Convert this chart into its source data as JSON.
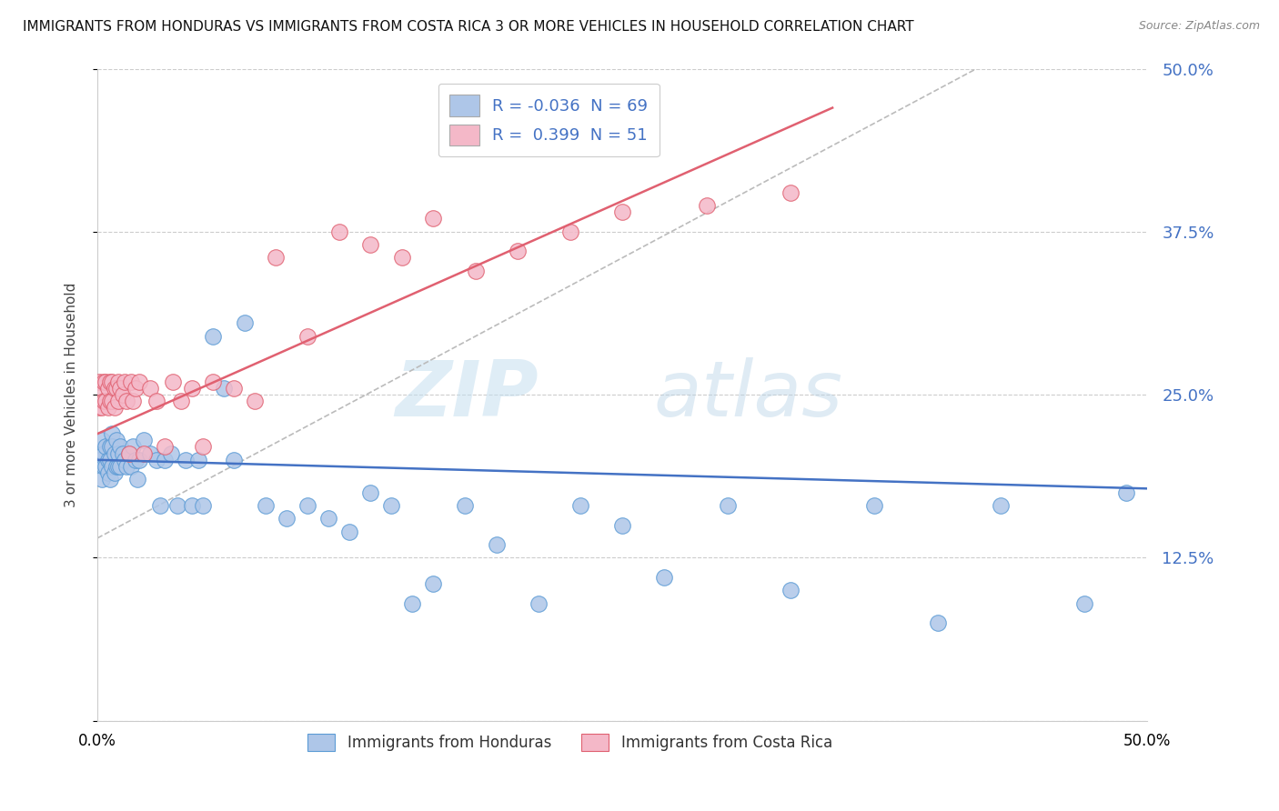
{
  "title": "IMMIGRANTS FROM HONDURAS VS IMMIGRANTS FROM COSTA RICA 3 OR MORE VEHICLES IN HOUSEHOLD CORRELATION CHART",
  "source": "Source: ZipAtlas.com",
  "ylabel": "3 or more Vehicles in Household",
  "y_ticks": [
    0.0,
    0.125,
    0.25,
    0.375,
    0.5
  ],
  "y_tick_labels": [
    "",
    "12.5%",
    "25.0%",
    "37.5%",
    "50.0%"
  ],
  "legend_honduras_label": "R = -0.036  N = 69",
  "legend_costarica_label": "R =  0.399  N = 51",
  "honduras_color": "#aec6e8",
  "honduras_edge": "#5b9bd5",
  "costarica_color": "#f4b8c8",
  "costarica_edge": "#e06070",
  "trend_blue": "#4472c4",
  "trend_pink": "#e06070",
  "trend_gray": "#bbbbbb",
  "grid_color": "#cccccc",
  "background_color": "#ffffff",
  "xlim": [
    0.0,
    0.5
  ],
  "ylim": [
    0.0,
    0.5
  ],
  "honduras_x": [
    0.001,
    0.002,
    0.002,
    0.003,
    0.003,
    0.004,
    0.004,
    0.005,
    0.005,
    0.006,
    0.006,
    0.006,
    0.007,
    0.007,
    0.007,
    0.008,
    0.008,
    0.009,
    0.009,
    0.01,
    0.01,
    0.011,
    0.011,
    0.012,
    0.013,
    0.014,
    0.015,
    0.016,
    0.017,
    0.018,
    0.019,
    0.02,
    0.022,
    0.025,
    0.028,
    0.03,
    0.032,
    0.035,
    0.038,
    0.042,
    0.045,
    0.048,
    0.05,
    0.055,
    0.06,
    0.065,
    0.07,
    0.08,
    0.09,
    0.1,
    0.11,
    0.12,
    0.13,
    0.14,
    0.15,
    0.16,
    0.175,
    0.19,
    0.21,
    0.23,
    0.25,
    0.27,
    0.3,
    0.33,
    0.37,
    0.4,
    0.43,
    0.47,
    0.49
  ],
  "honduras_y": [
    0.2,
    0.185,
    0.215,
    0.195,
    0.205,
    0.195,
    0.21,
    0.2,
    0.19,
    0.21,
    0.2,
    0.185,
    0.22,
    0.195,
    0.21,
    0.205,
    0.19,
    0.215,
    0.195,
    0.205,
    0.195,
    0.21,
    0.195,
    0.205,
    0.2,
    0.195,
    0.205,
    0.195,
    0.21,
    0.2,
    0.185,
    0.2,
    0.215,
    0.205,
    0.2,
    0.165,
    0.2,
    0.205,
    0.165,
    0.2,
    0.165,
    0.2,
    0.165,
    0.295,
    0.255,
    0.2,
    0.305,
    0.165,
    0.155,
    0.165,
    0.155,
    0.145,
    0.175,
    0.165,
    0.09,
    0.105,
    0.165,
    0.135,
    0.09,
    0.165,
    0.15,
    0.11,
    0.165,
    0.1,
    0.165,
    0.075,
    0.165,
    0.09,
    0.175
  ],
  "costarica_x": [
    0.001,
    0.001,
    0.002,
    0.002,
    0.003,
    0.003,
    0.004,
    0.004,
    0.005,
    0.005,
    0.006,
    0.006,
    0.007,
    0.007,
    0.008,
    0.008,
    0.009,
    0.01,
    0.01,
    0.011,
    0.012,
    0.013,
    0.014,
    0.015,
    0.016,
    0.017,
    0.018,
    0.02,
    0.022,
    0.025,
    0.028,
    0.032,
    0.036,
    0.04,
    0.045,
    0.05,
    0.055,
    0.065,
    0.075,
    0.085,
    0.1,
    0.115,
    0.13,
    0.145,
    0.16,
    0.18,
    0.2,
    0.225,
    0.25,
    0.29,
    0.33
  ],
  "costarica_y": [
    0.26,
    0.24,
    0.255,
    0.24,
    0.26,
    0.245,
    0.26,
    0.245,
    0.255,
    0.24,
    0.26,
    0.245,
    0.26,
    0.245,
    0.255,
    0.24,
    0.255,
    0.26,
    0.245,
    0.255,
    0.25,
    0.26,
    0.245,
    0.205,
    0.26,
    0.245,
    0.255,
    0.26,
    0.205,
    0.255,
    0.245,
    0.21,
    0.26,
    0.245,
    0.255,
    0.21,
    0.26,
    0.255,
    0.245,
    0.355,
    0.295,
    0.375,
    0.365,
    0.355,
    0.385,
    0.345,
    0.36,
    0.375,
    0.39,
    0.395,
    0.405
  ],
  "watermark_zip": "ZIP",
  "watermark_atlas": "atlas",
  "source_text": "Source: ZipAtlas.com"
}
